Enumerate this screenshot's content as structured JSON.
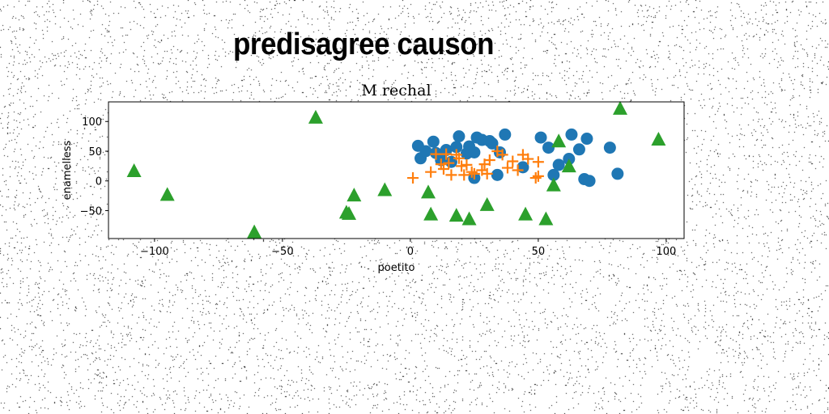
{
  "headline": "predisagree causon",
  "chart_data": {
    "type": "scatter",
    "title": "M rechal",
    "xlabel": "poetito",
    "ylabel": "enamelless",
    "xlim": [
      -118,
      107
    ],
    "ylim": [
      -97,
      133
    ],
    "xticks": [
      -100,
      -50,
      0,
      50,
      100
    ],
    "yticks": [
      -50,
      0,
      50,
      100
    ],
    "xtick_labels": [
      "−100",
      "−50",
      "0",
      "50",
      "100"
    ],
    "ytick_labels": [
      "−50",
      "0",
      "50",
      "100"
    ],
    "grid": false,
    "series": [
      {
        "marker": "circle",
        "color": "#1f77b4",
        "points": [
          [
            3,
            59
          ],
          [
            9,
            66
          ],
          [
            4,
            38
          ],
          [
            6,
            50
          ],
          [
            10,
            47
          ],
          [
            14,
            52
          ],
          [
            18,
            57
          ],
          [
            19,
            75
          ],
          [
            22,
            46
          ],
          [
            23,
            58
          ],
          [
            25,
            48
          ],
          [
            26,
            73
          ],
          [
            28,
            69
          ],
          [
            31,
            67
          ],
          [
            32,
            63
          ],
          [
            35,
            48
          ],
          [
            37,
            78
          ],
          [
            25,
            5
          ],
          [
            34,
            10
          ],
          [
            44,
            23
          ],
          [
            51,
            73
          ],
          [
            54,
            56
          ],
          [
            56,
            10
          ],
          [
            58,
            27
          ],
          [
            62,
            37
          ],
          [
            63,
            78
          ],
          [
            66,
            53
          ],
          [
            69,
            71
          ],
          [
            68,
            3
          ],
          [
            70,
            0
          ],
          [
            78,
            56
          ],
          [
            81,
            12
          ],
          [
            12,
            35
          ],
          [
            16,
            32
          ]
        ]
      },
      {
        "marker": "plus",
        "color": "#ff7f0e",
        "points": [
          [
            1,
            5
          ],
          [
            8,
            15
          ],
          [
            10,
            45
          ],
          [
            13,
            20
          ],
          [
            15,
            30
          ],
          [
            16,
            10
          ],
          [
            18,
            44
          ],
          [
            19,
            38
          ],
          [
            20,
            25
          ],
          [
            21,
            10
          ],
          [
            22,
            27
          ],
          [
            24,
            15
          ],
          [
            25,
            12
          ],
          [
            28,
            18
          ],
          [
            29,
            28
          ],
          [
            30,
            12
          ],
          [
            31,
            35
          ],
          [
            34,
            50
          ],
          [
            36,
            44
          ],
          [
            38,
            22
          ],
          [
            40,
            33
          ],
          [
            42,
            18
          ],
          [
            44,
            44
          ],
          [
            46,
            37
          ],
          [
            49,
            5
          ],
          [
            50,
            32
          ],
          [
            50,
            8
          ],
          [
            12,
            28
          ],
          [
            14,
            45
          ]
        ]
      },
      {
        "marker": "triangle",
        "color": "#2ca02c",
        "points": [
          [
            -108,
            16
          ],
          [
            -95,
            -24
          ],
          [
            -61,
            -87
          ],
          [
            -37,
            106
          ],
          [
            -25,
            -54
          ],
          [
            -24,
            -56
          ],
          [
            -22,
            -25
          ],
          [
            -10,
            -16
          ],
          [
            7,
            -20
          ],
          [
            8,
            -57
          ],
          [
            18,
            -59
          ],
          [
            23,
            -65
          ],
          [
            30,
            -41
          ],
          [
            45,
            -57
          ],
          [
            53,
            -65
          ],
          [
            56,
            -8
          ],
          [
            58,
            66
          ],
          [
            62,
            24
          ],
          [
            82,
            121
          ],
          [
            97,
            69
          ]
        ]
      }
    ]
  }
}
